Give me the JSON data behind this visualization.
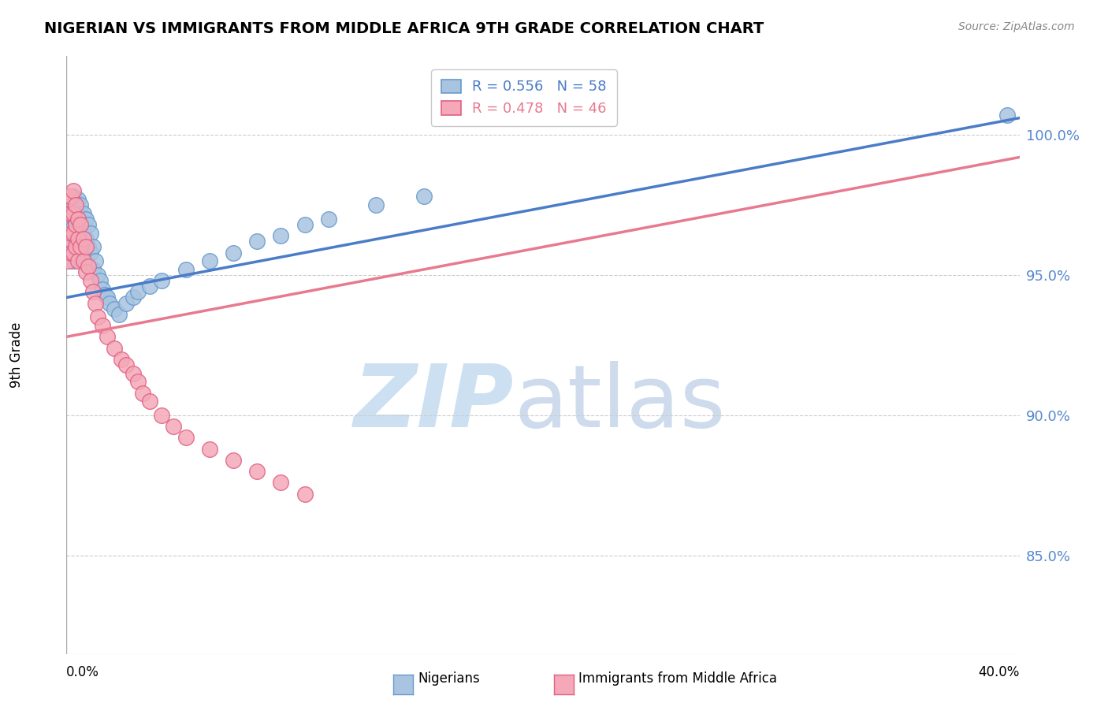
{
  "title": "NIGERIAN VS IMMIGRANTS FROM MIDDLE AFRICA 9TH GRADE CORRELATION CHART",
  "source": "Source: ZipAtlas.com",
  "ylabel": "9th Grade",
  "y_tick_labels": [
    "85.0%",
    "90.0%",
    "95.0%",
    "100.0%"
  ],
  "y_tick_values": [
    0.85,
    0.9,
    0.95,
    1.0
  ],
  "x_min": 0.0,
  "x_max": 0.4,
  "y_min": 0.815,
  "y_max": 1.028,
  "blue_R": 0.556,
  "blue_N": 58,
  "pink_R": 0.478,
  "pink_N": 46,
  "dot_color_blue": "#a8c4e0",
  "dot_color_pink": "#f4a8b8",
  "line_color_blue": "#4a7cc7",
  "line_color_pink": "#e87a90",
  "dot_edge_blue": "#6699cc",
  "dot_edge_pink": "#e06080",
  "watermark_color_zip": "#c8ddf0",
  "watermark_color_atlas": "#b8cce4",
  "blue_x": [
    0.001,
    0.001,
    0.001,
    0.002,
    0.002,
    0.002,
    0.002,
    0.003,
    0.003,
    0.003,
    0.003,
    0.003,
    0.004,
    0.004,
    0.004,
    0.005,
    0.005,
    0.005,
    0.005,
    0.006,
    0.006,
    0.006,
    0.007,
    0.007,
    0.007,
    0.008,
    0.008,
    0.008,
    0.009,
    0.009,
    0.01,
    0.01,
    0.011,
    0.011,
    0.012,
    0.013,
    0.014,
    0.015,
    0.016,
    0.017,
    0.018,
    0.02,
    0.022,
    0.025,
    0.028,
    0.03,
    0.035,
    0.04,
    0.05,
    0.06,
    0.07,
    0.08,
    0.09,
    0.1,
    0.11,
    0.13,
    0.15,
    0.395
  ],
  "blue_y": [
    0.97,
    0.963,
    0.957,
    0.978,
    0.972,
    0.966,
    0.958,
    0.978,
    0.973,
    0.967,
    0.961,
    0.955,
    0.975,
    0.968,
    0.961,
    0.977,
    0.972,
    0.965,
    0.958,
    0.975,
    0.968,
    0.961,
    0.972,
    0.965,
    0.958,
    0.97,
    0.963,
    0.955,
    0.968,
    0.96,
    0.965,
    0.958,
    0.96,
    0.952,
    0.955,
    0.95,
    0.948,
    0.945,
    0.943,
    0.942,
    0.94,
    0.938,
    0.936,
    0.94,
    0.942,
    0.944,
    0.946,
    0.948,
    0.952,
    0.955,
    0.958,
    0.962,
    0.964,
    0.968,
    0.97,
    0.975,
    0.978,
    1.007
  ],
  "pink_x": [
    0.001,
    0.001,
    0.001,
    0.001,
    0.002,
    0.002,
    0.002,
    0.002,
    0.003,
    0.003,
    0.003,
    0.003,
    0.004,
    0.004,
    0.004,
    0.005,
    0.005,
    0.005,
    0.006,
    0.006,
    0.007,
    0.007,
    0.008,
    0.008,
    0.009,
    0.01,
    0.011,
    0.012,
    0.013,
    0.015,
    0.017,
    0.02,
    0.023,
    0.025,
    0.028,
    0.03,
    0.032,
    0.035,
    0.04,
    0.045,
    0.05,
    0.06,
    0.07,
    0.08,
    0.09,
    0.1
  ],
  "pink_y": [
    0.978,
    0.972,
    0.963,
    0.955,
    0.978,
    0.972,
    0.965,
    0.958,
    0.98,
    0.972,
    0.965,
    0.958,
    0.975,
    0.968,
    0.96,
    0.97,
    0.963,
    0.955,
    0.968,
    0.96,
    0.963,
    0.955,
    0.96,
    0.951,
    0.953,
    0.948,
    0.944,
    0.94,
    0.935,
    0.932,
    0.928,
    0.924,
    0.92,
    0.918,
    0.915,
    0.912,
    0.908,
    0.905,
    0.9,
    0.896,
    0.892,
    0.888,
    0.884,
    0.88,
    0.876,
    0.872
  ]
}
